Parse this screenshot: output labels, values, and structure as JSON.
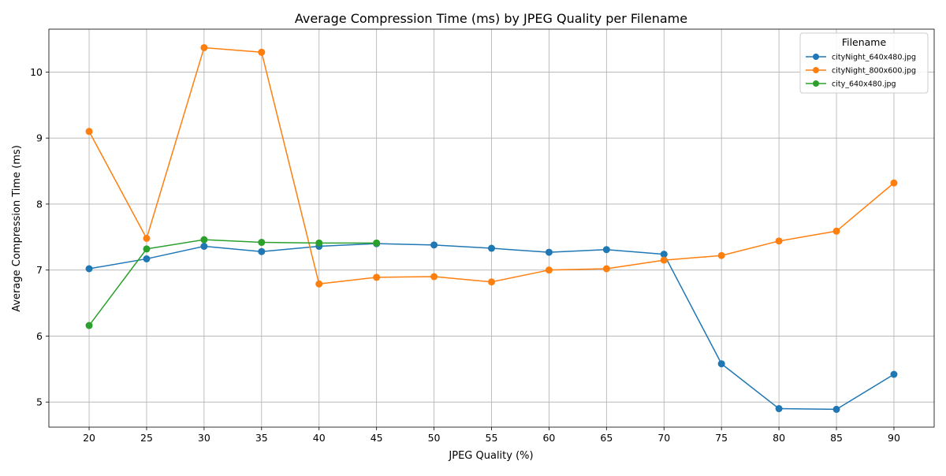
{
  "chart_data": {
    "type": "line",
    "title": "Average Compression Time (ms) by JPEG Quality per Filename",
    "xlabel": "JPEG Quality (%)",
    "ylabel": "Average Compression Time (ms)",
    "x_ticks": [
      20,
      25,
      30,
      35,
      40,
      45,
      50,
      55,
      60,
      65,
      70,
      75,
      80,
      85,
      90
    ],
    "y_ticks": [
      5,
      6,
      7,
      8,
      9,
      10
    ],
    "xlim": [
      16.5,
      93.5
    ],
    "ylim": [
      4.62,
      10.65
    ],
    "grid": true,
    "legend": {
      "title": "Filename",
      "placement": "top-right"
    },
    "series": [
      {
        "name": "cityNight_640x480.jpg",
        "color": "#1f77b4",
        "x": [
          20,
          25,
          30,
          35,
          40,
          45,
          50,
          55,
          60,
          65,
          70,
          75,
          80,
          85,
          90
        ],
        "y": [
          7.02,
          7.17,
          7.36,
          7.28,
          7.36,
          7.4,
          7.38,
          7.33,
          7.27,
          7.31,
          7.24,
          5.58,
          4.9,
          4.89,
          5.42
        ]
      },
      {
        "name": "cityNight_800x600.jpg",
        "color": "#ff7f0e",
        "x": [
          20,
          25,
          30,
          35,
          40,
          45,
          50,
          55,
          60,
          65,
          70,
          75,
          80,
          85,
          90
        ],
        "y": [
          9.1,
          7.48,
          10.37,
          10.3,
          6.79,
          6.89,
          6.9,
          6.82,
          7.0,
          7.02,
          7.15,
          7.22,
          7.44,
          7.59,
          8.32
        ]
      },
      {
        "name": "city_640x480.jpg",
        "color": "#2ca02c",
        "x": [
          20,
          25,
          30,
          35,
          40,
          45
        ],
        "y": [
          6.16,
          7.32,
          7.46,
          7.42,
          7.41,
          7.41
        ]
      }
    ]
  }
}
